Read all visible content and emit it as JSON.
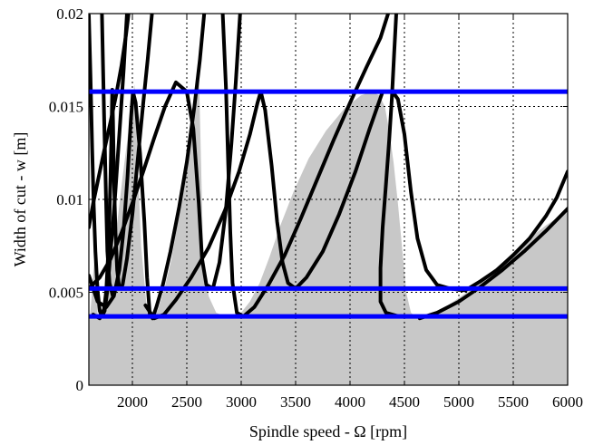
{
  "chart_data": {
    "type": "line",
    "xlabel": "Spindle speed - Ω [rpm]",
    "ylabel": "Width of cut - w [m]",
    "xlim": [
      1600,
      6000
    ],
    "ylim": [
      0,
      0.02
    ],
    "x_ticks": [
      2000,
      2500,
      3000,
      3500,
      4000,
      4500,
      5000,
      5500,
      6000
    ],
    "x_tick_labels": [
      "2000",
      "2500",
      "3000",
      "3500",
      "4000",
      "4500",
      "5000",
      "5500",
      "6000"
    ],
    "y_ticks": [
      0,
      0.005,
      0.01,
      0.015,
      0.02
    ],
    "y_tick_labels": [
      "0",
      "0.005",
      "0.01",
      "0.015",
      "0.02"
    ],
    "grid": true,
    "grid_style": "dotted",
    "stable_region_color": "#c8c8c8",
    "lobe_color": "#000000",
    "limit_line_color": "#0000ff",
    "stable_region": {
      "x": [
        1600,
        1610,
        1625,
        1640,
        1660,
        1680,
        1700,
        1720,
        1740,
        1760,
        1780,
        1800,
        1830,
        1870,
        1910,
        1960,
        2020,
        2080,
        2130,
        2180,
        2230,
        2290,
        2360,
        2430,
        2500,
        2560,
        2610,
        2650,
        2700,
        2770,
        2850,
        2930,
        3000,
        3080,
        3170,
        3260,
        3360,
        3480,
        3620,
        3780,
        3950,
        4100,
        4200,
        4270,
        4320,
        4360,
        4400,
        4440,
        4480,
        4520,
        4560,
        4600,
        4700,
        4800,
        4900,
        5000,
        5100,
        5200,
        5400,
        5600,
        5800,
        6000
      ],
      "y": [
        0.0037,
        0.0037,
        0.0047,
        0.006,
        0.0074,
        0.0038,
        0.0037,
        0.0039,
        0.0045,
        0.0052,
        0.0056,
        0.0063,
        0.0075,
        0.0092,
        0.0112,
        0.0135,
        0.0162,
        0.0075,
        0.0043,
        0.0037,
        0.004,
        0.0051,
        0.0068,
        0.0092,
        0.0122,
        0.0151,
        0.0172,
        0.0072,
        0.0048,
        0.0039,
        0.0037,
        0.0037,
        0.0039,
        0.0045,
        0.0055,
        0.0069,
        0.0086,
        0.0104,
        0.0122,
        0.0137,
        0.0149,
        0.0156,
        0.0158,
        0.0156,
        0.015,
        0.0137,
        0.012,
        0.0098,
        0.0073,
        0.0049,
        0.0039,
        0.0037,
        0.0038,
        0.004,
        0.0043,
        0.0047,
        0.0051,
        0.0056,
        0.0066,
        0.0077,
        0.0086,
        0.0094
      ]
    },
    "series": [
      {
        "points": [
          [
            1600,
            0.0059
          ],
          [
            1680,
            0.0045
          ],
          [
            1760,
            0.0042
          ],
          [
            1830,
            0.0048
          ],
          [
            1880,
            0.0062
          ],
          [
            1920,
            0.0084
          ],
          [
            1955,
            0.0112
          ],
          [
            1985,
            0.0142
          ],
          [
            2005,
            0.0158
          ],
          [
            2030,
            0.0152
          ],
          [
            2070,
            0.0125
          ],
          [
            2110,
            0.0088
          ],
          [
            2135,
            0.0058
          ],
          [
            2160,
            0.0038
          ],
          [
            2185,
            0.0036
          ],
          [
            2220,
            0.0042
          ],
          [
            2280,
            0.0054
          ],
          [
            2350,
            0.0072
          ],
          [
            2430,
            0.0096
          ],
          [
            2500,
            0.012
          ],
          [
            2570,
            0.015
          ],
          [
            2620,
            0.0175
          ],
          [
            2660,
            0.02
          ]
        ]
      },
      {
        "points": [
          [
            1600,
            0.0085
          ],
          [
            1640,
            0.0098
          ],
          [
            1690,
            0.0112
          ],
          [
            1740,
            0.0126
          ],
          [
            1800,
            0.0142
          ],
          [
            1850,
            0.0156
          ],
          [
            1900,
            0.0172
          ],
          [
            1940,
            0.0188
          ],
          [
            1965,
            0.02
          ]
        ]
      },
      {
        "points": [
          [
            1600,
            0.0052
          ],
          [
            1700,
            0.0058
          ],
          [
            1800,
            0.0068
          ],
          [
            1900,
            0.0082
          ],
          [
            2000,
            0.0098
          ],
          [
            2100,
            0.0115
          ],
          [
            2200,
            0.0133
          ],
          [
            2300,
            0.015
          ],
          [
            2400,
            0.0163
          ],
          [
            2500,
            0.0158
          ],
          [
            2560,
            0.0138
          ],
          [
            2610,
            0.0098
          ],
          [
            2640,
            0.0068
          ],
          [
            2680,
            0.0054
          ],
          [
            2740,
            0.0052
          ],
          [
            2800,
            0.0066
          ],
          [
            2860,
            0.0095
          ],
          [
            2910,
            0.013
          ],
          [
            2950,
            0.0163
          ],
          [
            2990,
            0.02
          ]
        ]
      },
      {
        "points": [
          [
            1640,
            0.0038
          ],
          [
            1700,
            0.0036
          ],
          [
            1740,
            0.0041
          ],
          [
            1760,
            0.0051
          ],
          [
            1775,
            0.0068
          ],
          [
            1790,
            0.0092
          ],
          [
            1800,
            0.0115
          ],
          [
            1810,
            0.0142
          ],
          [
            1815,
            0.0159
          ],
          [
            1822,
            0.0142
          ],
          [
            1830,
            0.0112
          ],
          [
            1845,
            0.0082
          ],
          [
            1860,
            0.0062
          ],
          [
            1880,
            0.0052
          ],
          [
            1910,
            0.0054
          ],
          [
            1950,
            0.0068
          ],
          [
            2000,
            0.0092
          ],
          [
            2050,
            0.0122
          ],
          [
            2100,
            0.0152
          ],
          [
            2140,
            0.0175
          ],
          [
            2180,
            0.02
          ]
        ]
      },
      {
        "points": [
          [
            1600,
            0.0199
          ],
          [
            1615,
            0.0166
          ],
          [
            1630,
            0.0128
          ],
          [
            1645,
            0.0096
          ],
          [
            1660,
            0.0072
          ],
          [
            1680,
            0.0051
          ],
          [
            1700,
            0.004
          ],
          [
            1720,
            0.0037
          ],
          [
            1745,
            0.004
          ],
          [
            1770,
            0.0051
          ],
          [
            1800,
            0.0072
          ],
          [
            1840,
            0.0101
          ],
          [
            1880,
            0.0135
          ],
          [
            1920,
            0.017
          ],
          [
            1950,
            0.02
          ]
        ]
      },
      {
        "points": [
          [
            1720,
            0.02
          ],
          [
            1730,
            0.0172
          ],
          [
            1740,
            0.0145
          ],
          [
            1750,
            0.012
          ],
          [
            1760,
            0.0095
          ],
          [
            1770,
            0.0072
          ],
          [
            1790,
            0.0055
          ],
          [
            1820,
            0.0048
          ]
        ]
      },
      {
        "points": [
          [
            2120,
            0.0043
          ],
          [
            2200,
            0.0036
          ],
          [
            2290,
            0.0038
          ],
          [
            2400,
            0.0046
          ],
          [
            2540,
            0.0058
          ],
          [
            2700,
            0.0074
          ],
          [
            2850,
            0.0094
          ],
          [
            2980,
            0.0115
          ],
          [
            3080,
            0.0135
          ],
          [
            3150,
            0.0152
          ],
          [
            3180,
            0.0158
          ],
          [
            3220,
            0.0148
          ],
          [
            3280,
            0.0118
          ],
          [
            3330,
            0.0088
          ],
          [
            3380,
            0.0066
          ],
          [
            3430,
            0.0055
          ],
          [
            3500,
            0.0052
          ],
          [
            3600,
            0.0058
          ],
          [
            3750,
            0.0072
          ],
          [
            3900,
            0.0092
          ],
          [
            4050,
            0.0115
          ],
          [
            4180,
            0.0138
          ],
          [
            4300,
            0.0158
          ]
        ]
      },
      {
        "points": [
          [
            2830,
            0.02
          ],
          [
            2860,
            0.016
          ],
          [
            2880,
            0.012
          ],
          [
            2900,
            0.0082
          ],
          [
            2920,
            0.0055
          ],
          [
            2960,
            0.0039
          ],
          [
            3020,
            0.0037
          ],
          [
            3120,
            0.0042
          ],
          [
            3250,
            0.0054
          ],
          [
            3400,
            0.007
          ],
          [
            3550,
            0.009
          ],
          [
            3700,
            0.0111
          ],
          [
            3850,
            0.0132
          ],
          [
            4000,
            0.0152
          ],
          [
            4150,
            0.0171
          ],
          [
            4280,
            0.0187
          ],
          [
            4350,
            0.02
          ]
        ]
      },
      {
        "points": [
          [
            4425,
            0.02
          ],
          [
            4405,
            0.0178
          ],
          [
            4385,
            0.0155
          ],
          [
            4360,
            0.0132
          ],
          [
            4330,
            0.0108
          ],
          [
            4300,
            0.0085
          ],
          [
            4280,
            0.0063
          ],
          [
            4280,
            0.0045
          ],
          [
            4330,
            0.0039
          ],
          [
            4450,
            0.0037
          ],
          [
            4600,
            0.0037
          ]
        ]
      },
      {
        "points": [
          [
            4390,
            0.0158
          ],
          [
            4440,
            0.0154
          ],
          [
            4500,
            0.0135
          ],
          [
            4560,
            0.0104
          ],
          [
            4620,
            0.0079
          ],
          [
            4700,
            0.0062
          ],
          [
            4800,
            0.0054
          ],
          [
            4920,
            0.0052
          ],
          [
            5060,
            0.0051
          ],
          [
            5200,
            0.0056
          ],
          [
            5350,
            0.0062
          ],
          [
            5500,
            0.007
          ],
          [
            5650,
            0.0079
          ],
          [
            5800,
            0.0091
          ],
          [
            5900,
            0.0101
          ],
          [
            6000,
            0.0115
          ]
        ]
      },
      {
        "points": [
          [
            4640,
            0.0036
          ],
          [
            4800,
            0.0039
          ],
          [
            5000,
            0.0045
          ],
          [
            5200,
            0.0053
          ],
          [
            5400,
            0.0062
          ],
          [
            5600,
            0.0072
          ],
          [
            5800,
            0.0083
          ],
          [
            6000,
            0.0095
          ]
        ]
      }
    ],
    "limit_lines": [
      {
        "y": 0.0158
      },
      {
        "y": 0.0052
      },
      {
        "y": 0.0037
      }
    ]
  }
}
